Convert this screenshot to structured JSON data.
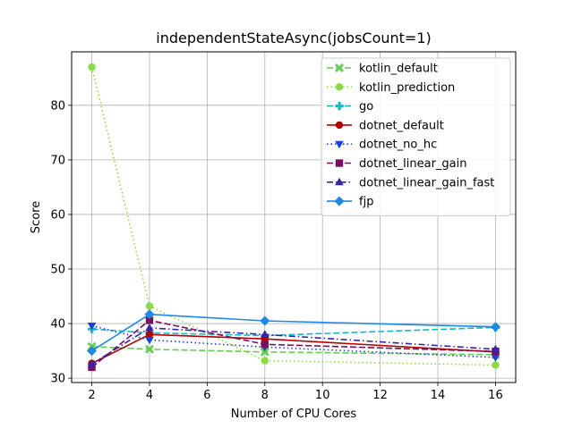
{
  "chart_data": {
    "type": "line",
    "title": "independentStateAsync(jobsCount=1)",
    "xlabel": "Number of CPU Cores",
    "ylabel": "Score",
    "x": [
      2,
      4,
      8,
      16
    ],
    "xlim": [
      1.3,
      16.7
    ],
    "ylim": [
      29.2,
      89.8
    ],
    "xticks": [
      2,
      4,
      6,
      8,
      10,
      12,
      14,
      16
    ],
    "yticks": [
      30,
      40,
      50,
      60,
      70,
      80
    ],
    "grid": true,
    "legend_position": "top-right",
    "series": [
      {
        "name": "kotlin_default",
        "values": [
          35.8,
          35.3,
          34.8,
          34.3
        ],
        "color": "#66cc55",
        "dash": "7,3",
        "marker": "x"
      },
      {
        "name": "kotlin_prediction",
        "values": [
          87.0,
          43.2,
          33.2,
          32.4
        ],
        "color": "#88dd44",
        "dash": "1.5,3",
        "marker": "circle"
      },
      {
        "name": "go",
        "values": [
          39.0,
          38.3,
          37.8,
          39.3
        ],
        "color": "#17b8c8",
        "dash": "7,3",
        "marker": "plus"
      },
      {
        "name": "dotnet_default",
        "values": [
          32.7,
          38.0,
          37.2,
          34.8
        ],
        "color": "#b30000",
        "dash": "",
        "marker": "circle"
      },
      {
        "name": "dotnet_no_hc",
        "values": [
          39.6,
          37.0,
          35.7,
          33.8
        ],
        "color": "#1f3fd6",
        "dash": "1.5,3",
        "marker": "triangle-down"
      },
      {
        "name": "dotnet_linear_gain",
        "values": [
          32.0,
          40.6,
          36.2,
          34.9
        ],
        "color": "#7a1060",
        "dash": "7,3",
        "marker": "square"
      },
      {
        "name": "dotnet_linear_gain_fast",
        "values": [
          32.6,
          39.2,
          38.0,
          35.3
        ],
        "color": "#3a22aa",
        "dash": "7,3,1.5,3",
        "marker": "triangle-up"
      },
      {
        "name": "fjp",
        "values": [
          35.0,
          41.7,
          40.5,
          39.4
        ],
        "color": "#1e88e5",
        "dash": "",
        "marker": "diamond"
      }
    ]
  }
}
